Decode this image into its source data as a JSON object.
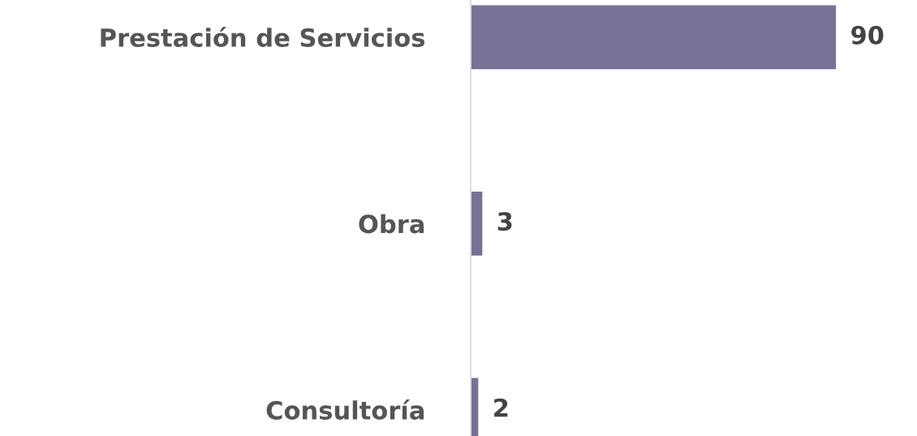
{
  "chart_data": {
    "type": "bar",
    "orientation": "horizontal",
    "categories": [
      "Prestación de Servicios",
      "Obra",
      "Consultoría"
    ],
    "values": [
      90,
      3,
      2
    ],
    "color": "#777196",
    "data_labels": true,
    "grid": false,
    "legend": false
  }
}
